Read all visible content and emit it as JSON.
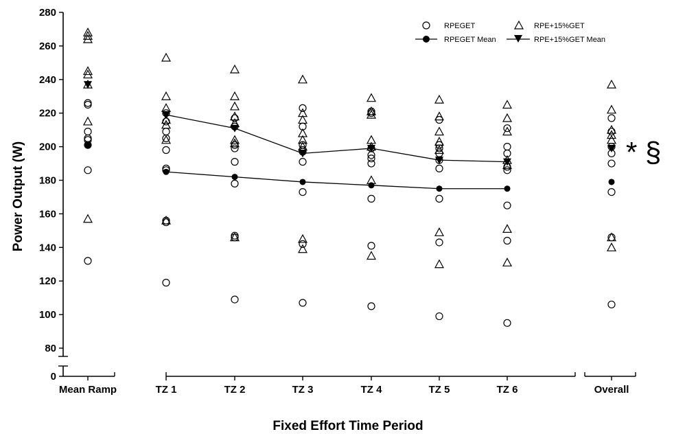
{
  "chart_data": {
    "type": "scatter",
    "title": "",
    "xlabel": "Fixed Effort Time Period",
    "ylabel": "Power Output (W)",
    "ylim": [
      80,
      280
    ],
    "y_axis_break": true,
    "y_ticks": [
      "0",
      "80",
      "100",
      "120",
      "140",
      "160",
      "180",
      "200",
      "220",
      "240",
      "260",
      "280"
    ],
    "categories": [
      "Mean Ramp",
      "TZ 1",
      "TZ 2",
      "TZ 3",
      "TZ 4",
      "TZ 5",
      "TZ 6",
      "Overall"
    ],
    "grid": false,
    "legend_position": "top-right",
    "legend": {
      "rpeget": "RPEGET",
      "rpe15": "RPE+15%GET",
      "rpeget_mean": "RPEGET Mean",
      "rpe15_mean": "RPE+15%GET Mean"
    },
    "annotation": "* §",
    "series": [
      {
        "name": "RPEGET",
        "marker": "open-circle",
        "points": [
          [
            0,
            132
          ],
          [
            0,
            186
          ],
          [
            0,
            201
          ],
          [
            0,
            204
          ],
          [
            0,
            205
          ],
          [
            0,
            209
          ],
          [
            0,
            225
          ],
          [
            0,
            226
          ],
          [
            1,
            119
          ],
          [
            1,
            155
          ],
          [
            1,
            156
          ],
          [
            1,
            186
          ],
          [
            1,
            187
          ],
          [
            1,
            198
          ],
          [
            1,
            205
          ],
          [
            1,
            209
          ],
          [
            1,
            215
          ],
          [
            1,
            220
          ],
          [
            2,
            109
          ],
          [
            2,
            146
          ],
          [
            2,
            147
          ],
          [
            2,
            178
          ],
          [
            2,
            191
          ],
          [
            2,
            199
          ],
          [
            2,
            201
          ],
          [
            2,
            212
          ],
          [
            2,
            217
          ],
          [
            3,
            107
          ],
          [
            3,
            142
          ],
          [
            3,
            173
          ],
          [
            3,
            191
          ],
          [
            3,
            197
          ],
          [
            3,
            198
          ],
          [
            3,
            201
          ],
          [
            3,
            212
          ],
          [
            3,
            223
          ],
          [
            4,
            105
          ],
          [
            4,
            141
          ],
          [
            4,
            169
          ],
          [
            4,
            190
          ],
          [
            4,
            193
          ],
          [
            4,
            195
          ],
          [
            4,
            199
          ],
          [
            4,
            220
          ],
          [
            4,
            221
          ],
          [
            5,
            99
          ],
          [
            5,
            143
          ],
          [
            5,
            169
          ],
          [
            5,
            187
          ],
          [
            5,
            192
          ],
          [
            5,
            196
          ],
          [
            5,
            199
          ],
          [
            5,
            201
          ],
          [
            5,
            216
          ],
          [
            6,
            95
          ],
          [
            6,
            144
          ],
          [
            6,
            165
          ],
          [
            6,
            186
          ],
          [
            6,
            188
          ],
          [
            6,
            196
          ],
          [
            6,
            200
          ],
          [
            6,
            211
          ],
          [
            7,
            106
          ],
          [
            7,
            146
          ],
          [
            7,
            173
          ],
          [
            7,
            190
          ],
          [
            7,
            196
          ],
          [
            7,
            200
          ],
          [
            7,
            209
          ],
          [
            7,
            217
          ]
        ]
      },
      {
        "name": "RPE+15%GET",
        "marker": "open-triangle",
        "points": [
          [
            0,
            157
          ],
          [
            0,
            215
          ],
          [
            0,
            237
          ],
          [
            0,
            243
          ],
          [
            0,
            245
          ],
          [
            0,
            264
          ],
          [
            0,
            266
          ],
          [
            0,
            268
          ],
          [
            1,
            156
          ],
          [
            1,
            204
          ],
          [
            1,
            213
          ],
          [
            1,
            216
          ],
          [
            1,
            223
          ],
          [
            1,
            230
          ],
          [
            1,
            253
          ],
          [
            2,
            146
          ],
          [
            2,
            202
          ],
          [
            2,
            204
          ],
          [
            2,
            214
          ],
          [
            2,
            218
          ],
          [
            2,
            224
          ],
          [
            2,
            230
          ],
          [
            2,
            246
          ],
          [
            3,
            139
          ],
          [
            3,
            145
          ],
          [
            3,
            200
          ],
          [
            3,
            204
          ],
          [
            3,
            208
          ],
          [
            3,
            216
          ],
          [
            3,
            220
          ],
          [
            3,
            240
          ],
          [
            4,
            135
          ],
          [
            4,
            180
          ],
          [
            4,
            200
          ],
          [
            4,
            204
          ],
          [
            4,
            219
          ],
          [
            4,
            221
          ],
          [
            4,
            229
          ],
          [
            5,
            130
          ],
          [
            5,
            149
          ],
          [
            5,
            198
          ],
          [
            5,
            203
          ],
          [
            5,
            209
          ],
          [
            5,
            218
          ],
          [
            5,
            228
          ],
          [
            6,
            131
          ],
          [
            6,
            151
          ],
          [
            6,
            189
          ],
          [
            6,
            192
          ],
          [
            6,
            209
          ],
          [
            6,
            217
          ],
          [
            6,
            225
          ],
          [
            7,
            140
          ],
          [
            7,
            146
          ],
          [
            7,
            204
          ],
          [
            7,
            207
          ],
          [
            7,
            210
          ],
          [
            7,
            222
          ],
          [
            7,
            237
          ]
        ]
      },
      {
        "name": "RPEGET Mean",
        "marker": "filled-circle",
        "line_categories": [
          1,
          2,
          3,
          4,
          5,
          6
        ],
        "points": [
          [
            0,
            201
          ],
          [
            1,
            185
          ],
          [
            2,
            182
          ],
          [
            3,
            179
          ],
          [
            4,
            177
          ],
          [
            5,
            175
          ],
          [
            6,
            175
          ],
          [
            7,
            179
          ]
        ]
      },
      {
        "name": "RPE+15%GET Mean",
        "marker": "filled-triangle-down",
        "line_categories": [
          1,
          2,
          3,
          4,
          5,
          6
        ],
        "points": [
          [
            0,
            237
          ],
          [
            1,
            219
          ],
          [
            2,
            211
          ],
          [
            3,
            196
          ],
          [
            4,
            199
          ],
          [
            5,
            192
          ],
          [
            6,
            191
          ],
          [
            7,
            199
          ]
        ]
      }
    ]
  }
}
